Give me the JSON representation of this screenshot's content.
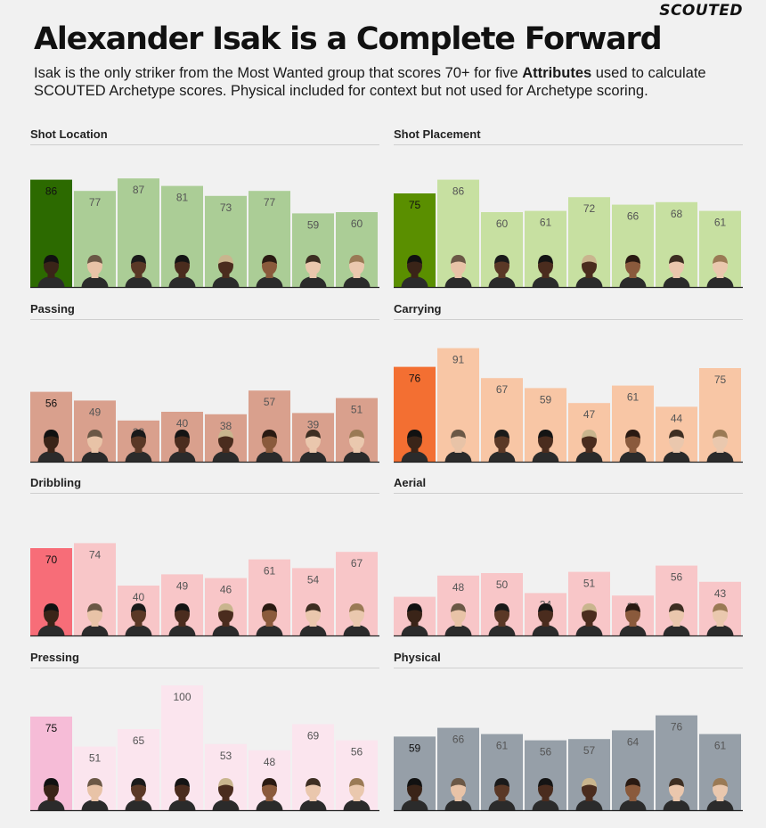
{
  "brand": "SCOUTED",
  "title": "Alexander Isak is a Complete Forward",
  "subtitle": {
    "before": "Isak is the only striker from the Most Wanted group that scores 70+ for five ",
    "bold": "Attributes",
    "after": " used to calculate SCOUTED Archetype scores. Physical included for context but not used for Archetype scoring."
  },
  "colors": {
    "shot_location": {
      "highlight": "#2c6a00",
      "base": "#abcd96"
    },
    "shot_placement": {
      "highlight": "#5a8f00",
      "base": "#c7e0a1"
    },
    "passing": {
      "highlight": "#d9a08d",
      "base": "#d9a08d"
    },
    "carrying": {
      "highlight": "#f36f32",
      "base": "#f8c6a5"
    },
    "dribbling": {
      "highlight": "#f76d78",
      "base": "#f8c6c8"
    },
    "aerial": {
      "highlight": "#f8c6c8",
      "base": "#f8c6c8"
    },
    "pressing": {
      "highlight": "#f6bcd7",
      "base": "#fbe5ee"
    },
    "physical": {
      "highlight": "#969fa8",
      "base": "#969fa8"
    }
  },
  "chart_data": [
    {
      "type": "bar",
      "title": "Shot Location",
      "values": [
        86,
        77,
        87,
        81,
        73,
        77,
        59,
        60
      ],
      "ylim": [
        0,
        100
      ],
      "highlight_index": 0
    },
    {
      "type": "bar",
      "title": "Shot Placement",
      "values": [
        75,
        86,
        60,
        61,
        72,
        66,
        68,
        61
      ],
      "ylim": [
        0,
        100
      ],
      "highlight_index": 0
    },
    {
      "type": "bar",
      "title": "Passing",
      "values": [
        56,
        49,
        33,
        40,
        38,
        57,
        39,
        51
      ],
      "ylim": [
        0,
        100
      ],
      "highlight_index": 0
    },
    {
      "type": "bar",
      "title": "Carrying",
      "values": [
        76,
        91,
        67,
        59,
        47,
        61,
        44,
        75
      ],
      "ylim": [
        0,
        100
      ],
      "highlight_index": 0
    },
    {
      "type": "bar",
      "title": "Dribbling",
      "values": [
        70,
        74,
        40,
        49,
        46,
        61,
        54,
        67
      ],
      "ylim": [
        0,
        100
      ],
      "highlight_index": 0
    },
    {
      "type": "bar",
      "title": "Aerial",
      "values": [
        31,
        48,
        50,
        34,
        51,
        32,
        56,
        43
      ],
      "ylim": [
        0,
        100
      ],
      "highlight_index": 0
    },
    {
      "type": "bar",
      "title": "Pressing",
      "values": [
        75,
        51,
        65,
        100,
        53,
        48,
        69,
        56
      ],
      "ylim": [
        0,
        100
      ],
      "highlight_index": 0
    },
    {
      "type": "bar",
      "title": "Physical",
      "values": [
        59,
        66,
        61,
        56,
        57,
        64,
        76,
        61
      ],
      "ylim": [
        0,
        100
      ],
      "highlight_index": 0
    }
  ],
  "players": [
    {
      "skin": "#3a2418",
      "hair": "#111111"
    },
    {
      "skin": "#e8c3a7",
      "hair": "#6b5846"
    },
    {
      "skin": "#5a3826",
      "hair": "#1a1a1a"
    },
    {
      "skin": "#4a2c1e",
      "hair": "#141414"
    },
    {
      "skin": "#4a2c1e",
      "hair": "#c9b58e"
    },
    {
      "skin": "#8a5a3c",
      "hair": "#2a1a12"
    },
    {
      "skin": "#eac7ad",
      "hair": "#3d2e22"
    },
    {
      "skin": "#eac8ae",
      "hair": "#9a7a55"
    }
  ]
}
